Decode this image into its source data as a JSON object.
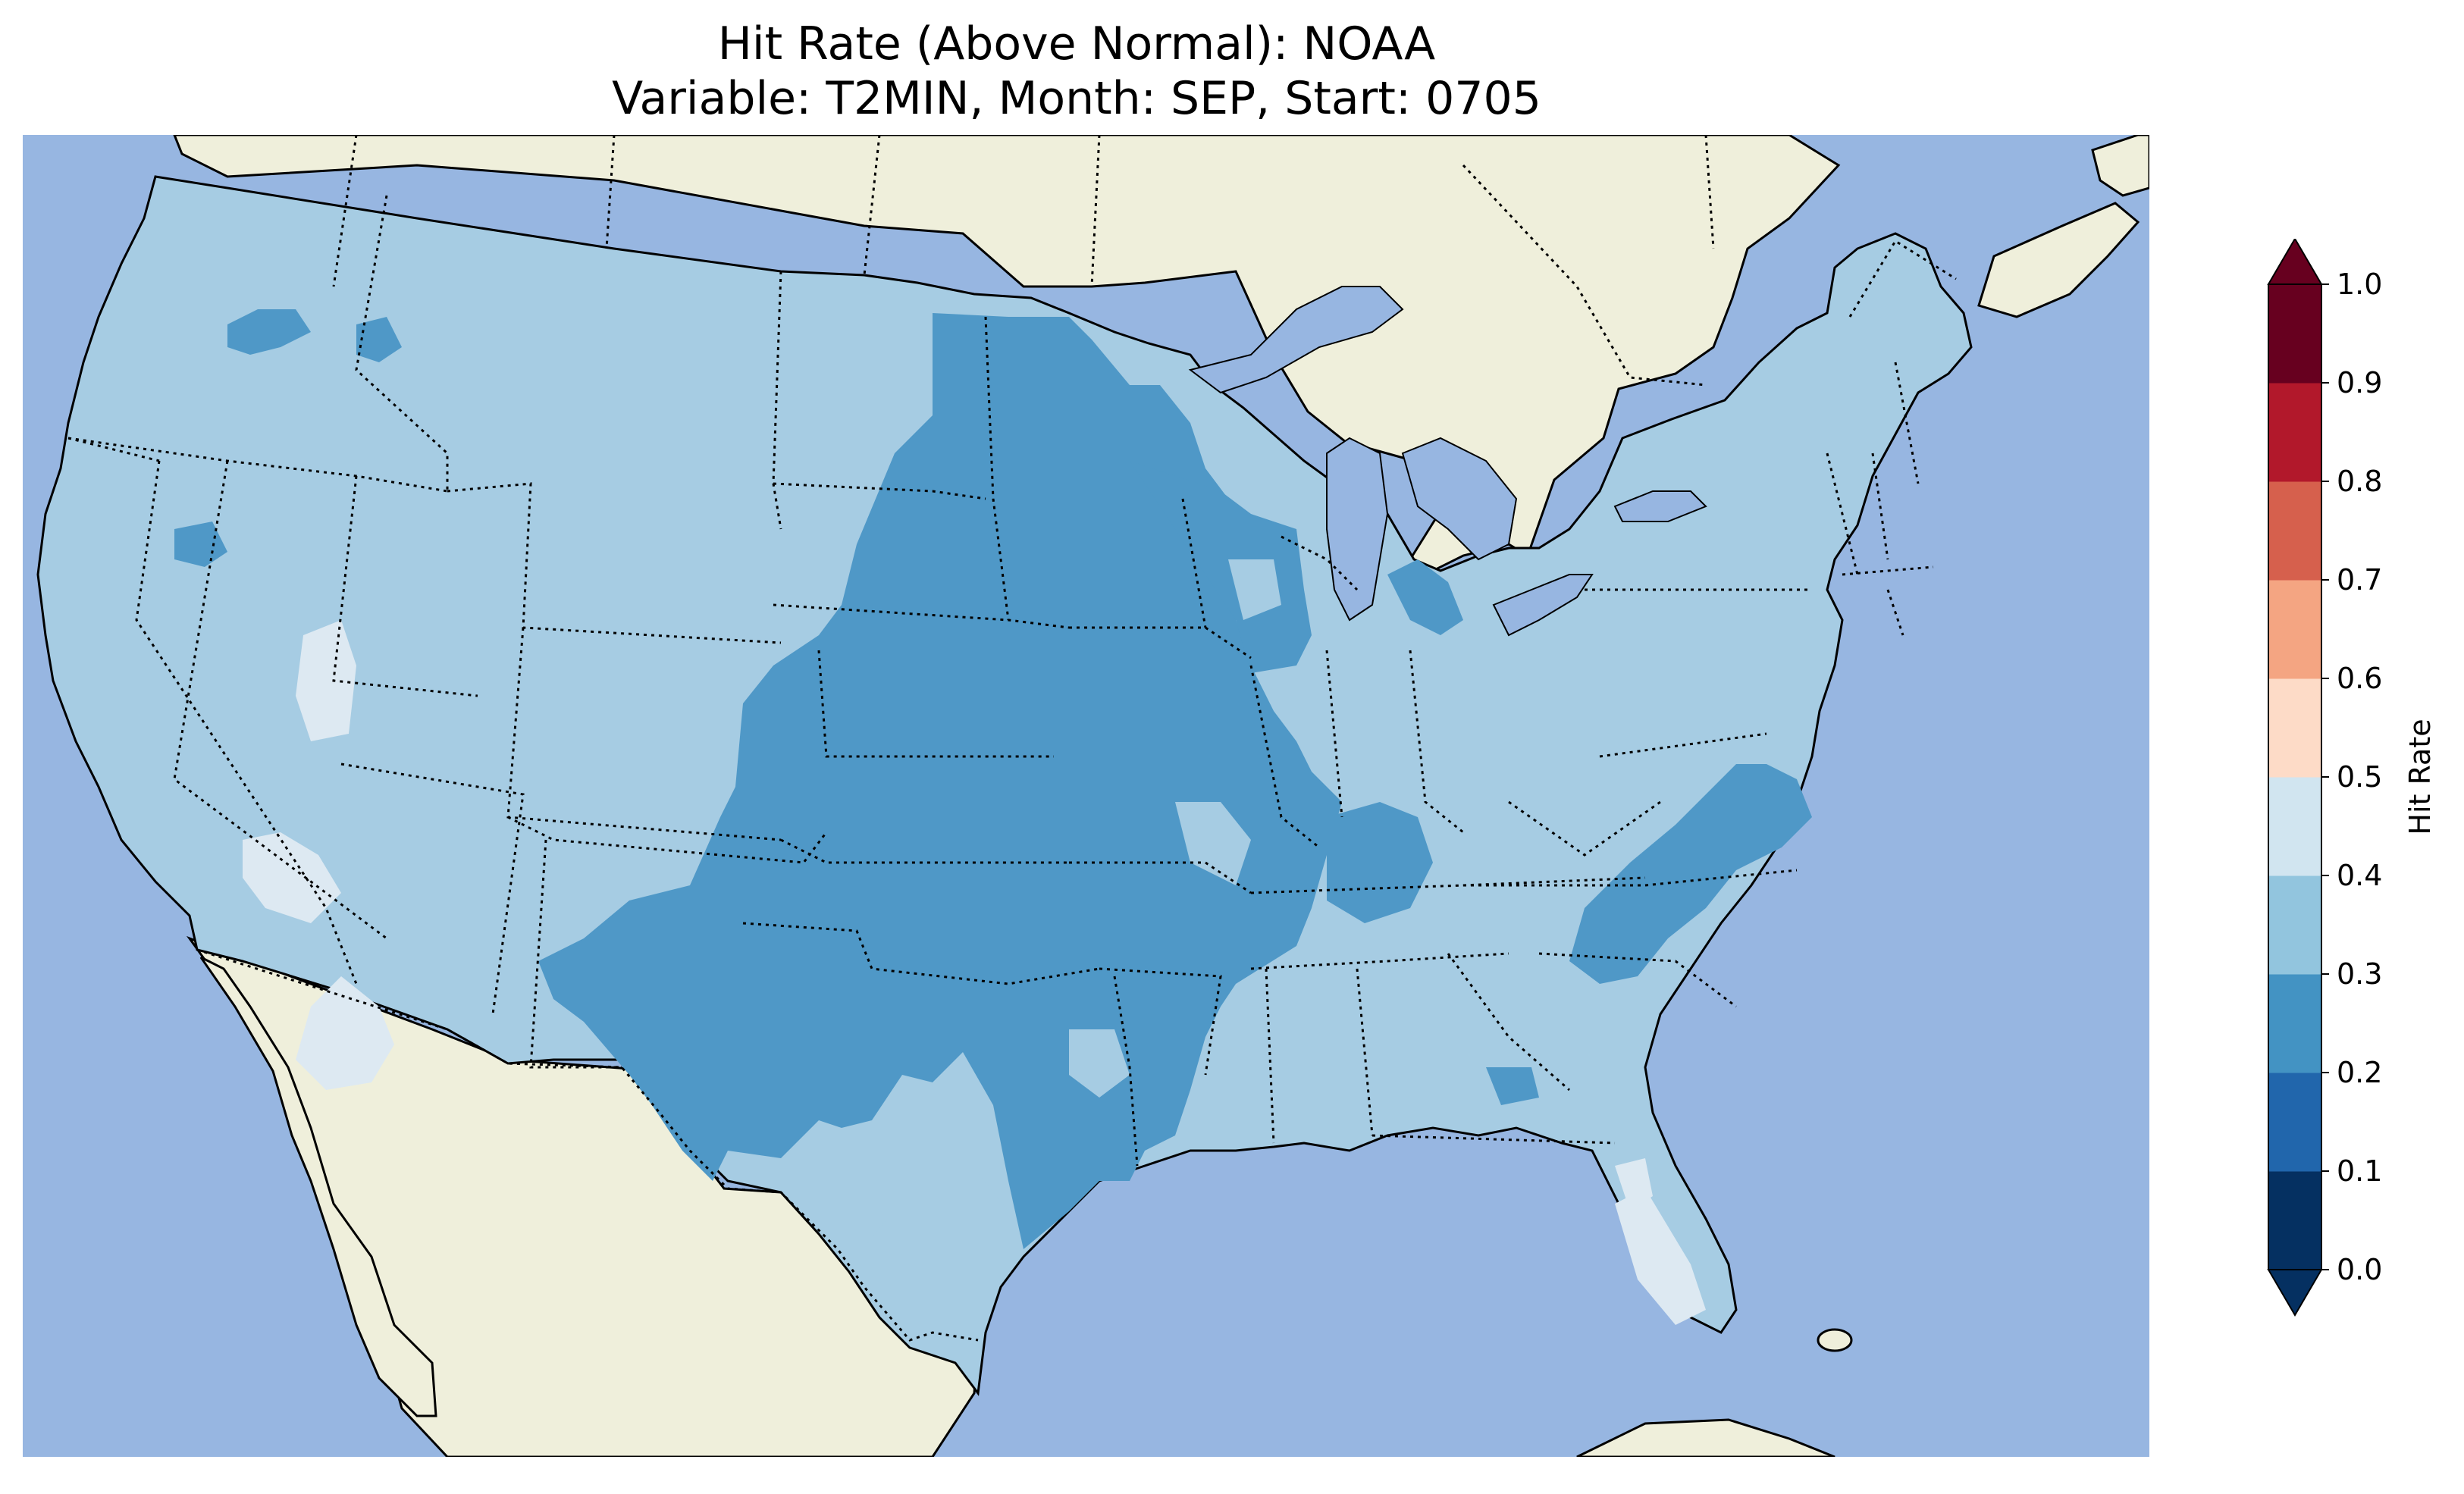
{
  "title": {
    "line1": "Hit Rate (Above Normal): NOAA",
    "line2": "Variable: T2MIN, Month: SEP, Start: 0705"
  },
  "colors": {
    "ocean": "#97b6e1",
    "land": "#efefdb",
    "lakes": "#97b6e1"
  },
  "colorbar": {
    "label": "Hit Rate",
    "ticks": [
      "0.0",
      "0.1",
      "0.2",
      "0.3",
      "0.4",
      "0.5",
      "0.6",
      "0.7",
      "0.8",
      "0.9",
      "1.0"
    ],
    "bins": [
      {
        "range": [
          0.0,
          0.1
        ],
        "color": "#053061"
      },
      {
        "range": [
          0.1,
          0.2
        ],
        "color": "#2166ac"
      },
      {
        "range": [
          0.2,
          0.3
        ],
        "color": "#4393c3"
      },
      {
        "range": [
          0.3,
          0.4
        ],
        "color": "#92c5de"
      },
      {
        "range": [
          0.4,
          0.5
        ],
        "color": "#d1e5f0"
      },
      {
        "range": [
          0.5,
          0.6
        ],
        "color": "#fddbc7"
      },
      {
        "range": [
          0.6,
          0.7
        ],
        "color": "#f4a582"
      },
      {
        "range": [
          0.7,
          0.8
        ],
        "color": "#d6604d"
      },
      {
        "range": [
          0.8,
          0.9
        ],
        "color": "#b2182b"
      },
      {
        "range": [
          0.9,
          1.0
        ],
        "color": "#67001f"
      }
    ],
    "extend": "both",
    "label_position": "right"
  },
  "map_data": {
    "region": "Contiguous United States",
    "fill_classes": [
      {
        "range": [
          0.2,
          0.3
        ],
        "color": "#4f98c7",
        "regions": [
          "Central Plains",
          "Texas / Oklahoma",
          "Upper Midwest",
          "Virginia"
        ]
      },
      {
        "range": [
          0.3,
          0.4
        ],
        "color": "#a6cce3",
        "regions": [
          "West",
          "East",
          "Southeast",
          "Northeast"
        ]
      },
      {
        "range": [
          0.4,
          0.5
        ],
        "color": "#dde9f2",
        "regions": [
          "Nevada",
          "Southern California",
          "Florida"
        ]
      }
    ],
    "borders": [
      "coastlines",
      "state boundaries (dotted)",
      "country boundaries (dotted)"
    ]
  }
}
